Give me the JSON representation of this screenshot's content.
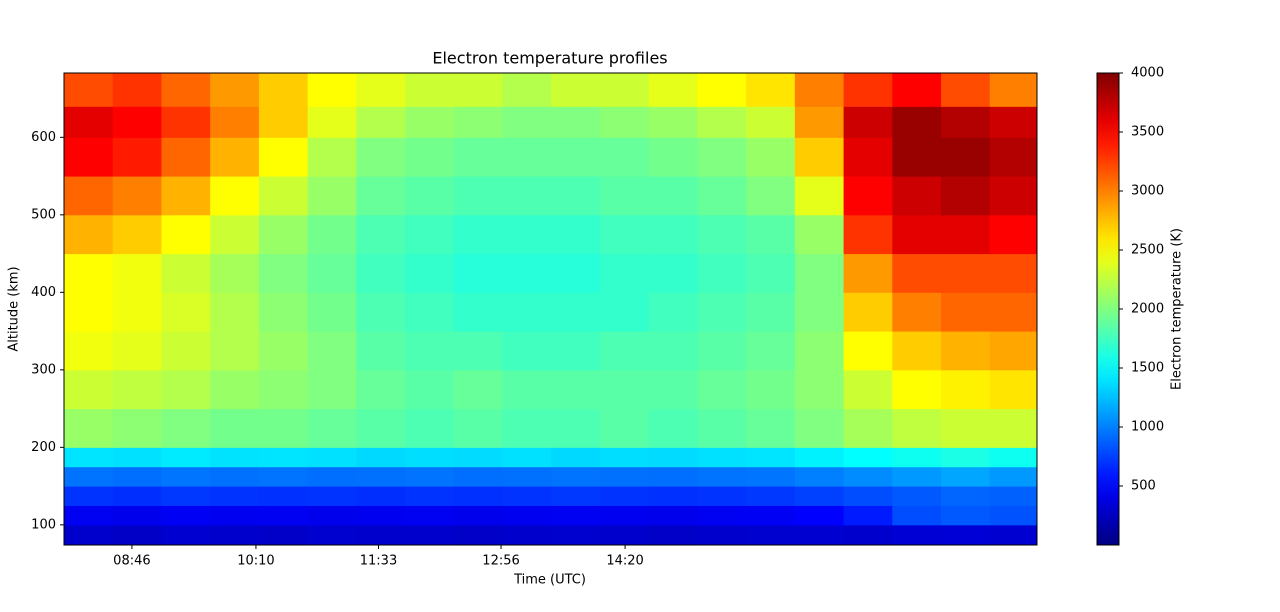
{
  "chart_data": {
    "type": "heatmap",
    "title": "Electron temperature profiles",
    "xlabel": "Time (UTC)",
    "ylabel": "Altitude (km)",
    "colorbar_label": "Electron temperature (K)",
    "colormap": "jet",
    "xlim": [
      480,
      1139
    ],
    "xticks": [
      {
        "value": 526,
        "label": "08:46"
      },
      {
        "value": 610,
        "label": "10:10"
      },
      {
        "value": 693,
        "label": "11:33"
      },
      {
        "value": 776,
        "label": "12:56"
      },
      {
        "value": 860,
        "label": "14:20"
      }
    ],
    "ylim": [
      74,
      683
    ],
    "yticks": [
      100,
      200,
      300,
      400,
      500,
      600
    ],
    "clim": [
      0,
      4000
    ],
    "cticks": [
      500,
      1000,
      1500,
      2000,
      2500,
      3000,
      3500,
      4000
    ],
    "xbins": [
      480,
      513,
      546,
      579,
      612,
      645,
      678,
      711,
      744,
      777,
      810,
      843,
      876,
      909,
      942,
      975,
      1008,
      1041,
      1074,
      1107,
      1139
    ],
    "ybins": [
      74,
      100,
      125,
      150,
      175,
      200,
      250,
      300,
      350,
      400,
      450,
      500,
      550,
      600,
      640,
      683
    ],
    "z": [
      [
        300,
        280,
        320,
        300,
        290,
        310,
        300,
        300,
        290,
        300,
        310,
        300,
        290,
        300,
        310,
        320,
        300,
        330,
        340,
        320
      ],
      [
        450,
        430,
        460,
        440,
        450,
        430,
        440,
        450,
        430,
        440,
        450,
        440,
        430,
        450,
        460,
        500,
        600,
        800,
        850,
        820
      ],
      [
        700,
        680,
        720,
        700,
        690,
        700,
        680,
        700,
        690,
        700,
        720,
        700,
        690,
        700,
        720,
        750,
        800,
        850,
        900,
        880
      ],
      [
        950,
        930,
        960,
        940,
        950,
        930,
        940,
        950,
        930,
        940,
        950,
        940,
        930,
        950,
        960,
        1000,
        1050,
        1100,
        1150,
        1100
      ],
      [
        1400,
        1380,
        1420,
        1390,
        1400,
        1380,
        1350,
        1370,
        1360,
        1380,
        1350,
        1370,
        1360,
        1380,
        1400,
        1450,
        1500,
        1550,
        1600,
        1550
      ],
      [
        2100,
        2050,
        2000,
        1950,
        1950,
        1900,
        1850,
        1800,
        1850,
        1800,
        1800,
        1850,
        1800,
        1850,
        1900,
        2000,
        2150,
        2250,
        2300,
        2300
      ],
      [
        2300,
        2250,
        2200,
        2100,
        2050,
        2000,
        1900,
        1850,
        1900,
        1850,
        1850,
        1850,
        1850,
        1900,
        1950,
        2050,
        2300,
        2500,
        2550,
        2600
      ],
      [
        2450,
        2400,
        2300,
        2200,
        2100,
        2000,
        1850,
        1800,
        1800,
        1750,
        1750,
        1800,
        1800,
        1850,
        1900,
        2050,
        2500,
        2700,
        2800,
        2850
      ],
      [
        2500,
        2450,
        2350,
        2200,
        2050,
        1950,
        1800,
        1750,
        1700,
        1700,
        1700,
        1700,
        1750,
        1800,
        1850,
        2000,
        2700,
        3000,
        3100,
        3100
      ],
      [
        2500,
        2450,
        2300,
        2150,
        2000,
        1900,
        1750,
        1700,
        1650,
        1650,
        1650,
        1700,
        1700,
        1750,
        1800,
        2000,
        2900,
        3200,
        3200,
        3200
      ],
      [
        2800,
        2700,
        2500,
        2300,
        2100,
        1950,
        1800,
        1750,
        1700,
        1700,
        1700,
        1750,
        1750,
        1800,
        1850,
        2100,
        3300,
        3600,
        3600,
        3500
      ],
      [
        3100,
        3000,
        2800,
        2500,
        2300,
        2100,
        1900,
        1850,
        1800,
        1800,
        1800,
        1850,
        1850,
        1900,
        2000,
        2400,
        3500,
        3700,
        3800,
        3700
      ],
      [
        3500,
        3400,
        3100,
        2800,
        2500,
        2200,
        2000,
        1950,
        1900,
        1900,
        1900,
        1900,
        1950,
        2000,
        2100,
        2700,
        3600,
        3900,
        3900,
        3800
      ],
      [
        3600,
        3500,
        3300,
        3000,
        2700,
        2400,
        2200,
        2100,
        2050,
        2000,
        2000,
        2050,
        2100,
        2200,
        2300,
        2900,
        3700,
        3900,
        3800,
        3700
      ],
      [
        3200,
        3300,
        3100,
        2900,
        2700,
        2500,
        2400,
        2300,
        2300,
        2200,
        2300,
        2300,
        2400,
        2500,
        2600,
        3000,
        3300,
        3500,
        3200,
        3000
      ]
    ]
  }
}
